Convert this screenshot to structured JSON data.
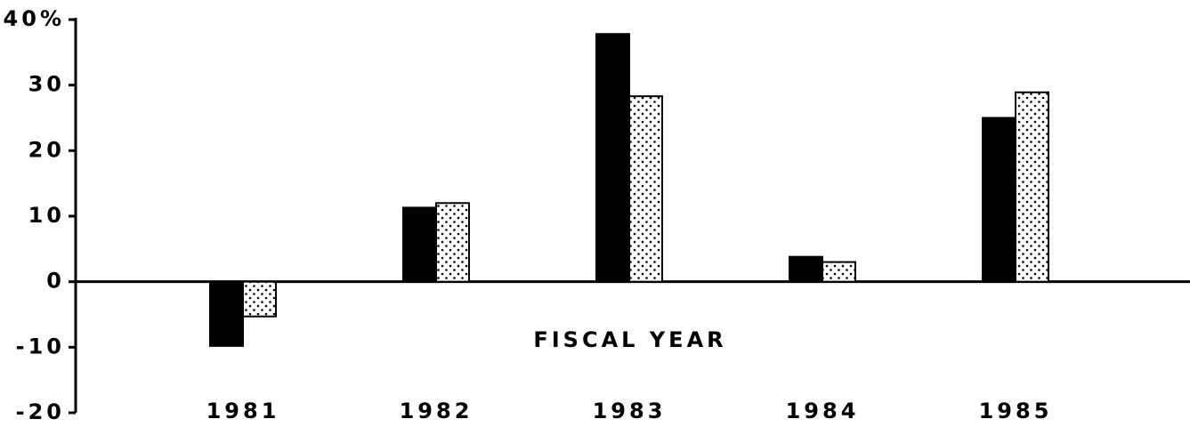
{
  "chart_data": {
    "type": "bar",
    "x_label": "FISCAL YEAR",
    "categories": [
      "1981",
      "1982",
      "1983",
      "1984",
      "1985"
    ],
    "series": [
      {
        "color": "#000000",
        "values": [
          -9.8,
          11.3,
          37.8,
          3.8,
          25
        ]
      },
      {
        "color": "#ffffff",
        "pattern": "dots",
        "values": [
          -5.3,
          12,
          28.3,
          3,
          28.9
        ]
      }
    ],
    "ylim": [
      -20,
      40
    ],
    "yticks": [
      -20,
      -10,
      0,
      10,
      20,
      30,
      {
        "value": 40,
        "label": "40%"
      }
    ]
  }
}
